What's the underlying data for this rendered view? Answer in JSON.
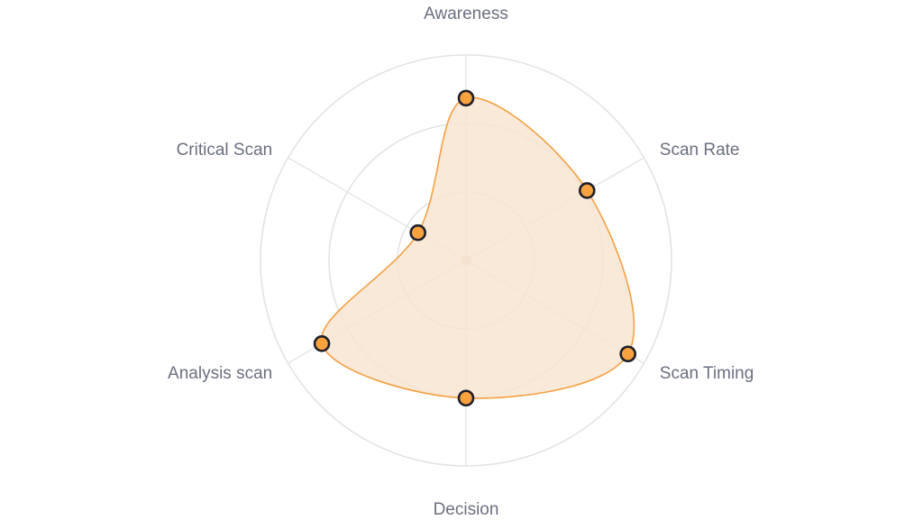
{
  "chart_data": {
    "type": "radar",
    "axes": [
      "Awareness",
      "Scan Rate",
      "Scan Timing",
      "Decision",
      "Analysis scan",
      "Critical Scan"
    ],
    "series": [
      {
        "values": [
          0.79,
          0.68,
          0.91,
          0.67,
          0.81,
          0.27
        ]
      }
    ],
    "range": [
      0,
      1
    ],
    "grid_rings": 3,
    "grid": true,
    "legend": "none",
    "colors": {
      "line": "#f5a043",
      "fill": "#f7e5d1",
      "point": "#f7a23e",
      "point_stroke": "#1f1f2b",
      "grid": "#e3e3e6",
      "label": "#6b6f80"
    }
  }
}
